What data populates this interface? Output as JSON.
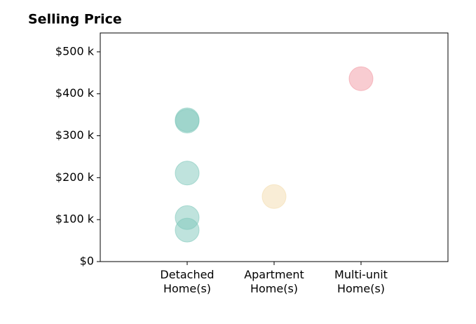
{
  "chart_data": {
    "type": "strip",
    "title": "Selling Price",
    "categories": [
      "Detached\nHome(s)",
      "Apartment\nHome(s)",
      "Multi-unit\nHome(s)"
    ],
    "values": [
      [
        338000,
        335000,
        211000,
        105000,
        75000
      ],
      [
        155000
      ],
      [
        436000
      ]
    ],
    "colors": [
      "#7fc8bb",
      "#f3dcae",
      "#f29aa3"
    ],
    "ylim": [
      0,
      545000
    ],
    "yticks": [
      {
        "value": 0,
        "label": "$0"
      },
      {
        "value": 100000,
        "label": "$100 k"
      },
      {
        "value": 200000,
        "label": "$200 k"
      },
      {
        "value": 300000,
        "label": "$300 k"
      },
      {
        "value": 400000,
        "label": "$400 k"
      },
      {
        "value": 500000,
        "label": "$500 k"
      }
    ],
    "grid": false
  }
}
